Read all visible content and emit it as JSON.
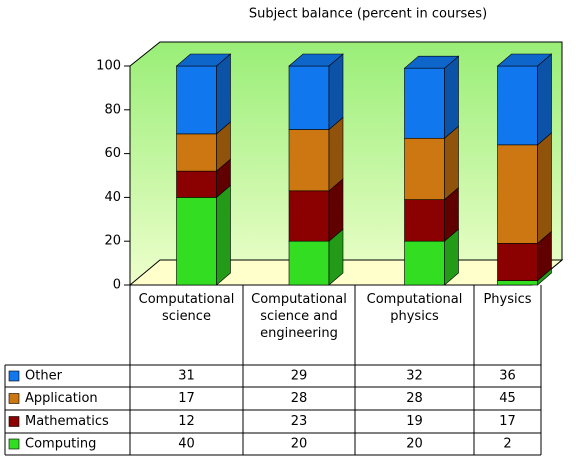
{
  "chart_data": {
    "type": "bar",
    "stacked": true,
    "title": "Subject balance (percent in courses)",
    "categories": [
      "Computational science",
      "Computational science and engineering",
      "Computational physics",
      "Physics"
    ],
    "series": [
      {
        "name": "Computing",
        "color": "#33dd22",
        "values": [
          40,
          20,
          20,
          2
        ]
      },
      {
        "name": "Mathematics",
        "color": "#8b0000",
        "values": [
          12,
          23,
          19,
          17
        ]
      },
      {
        "name": "Application",
        "color": "#cc7711",
        "values": [
          17,
          28,
          28,
          45
        ]
      },
      {
        "name": "Other",
        "color": "#1177ee",
        "values": [
          31,
          29,
          32,
          36
        ]
      }
    ],
    "ylim": [
      0,
      100
    ],
    "yticks": [
      0,
      20,
      40,
      60,
      80,
      100
    ],
    "grid": false
  }
}
